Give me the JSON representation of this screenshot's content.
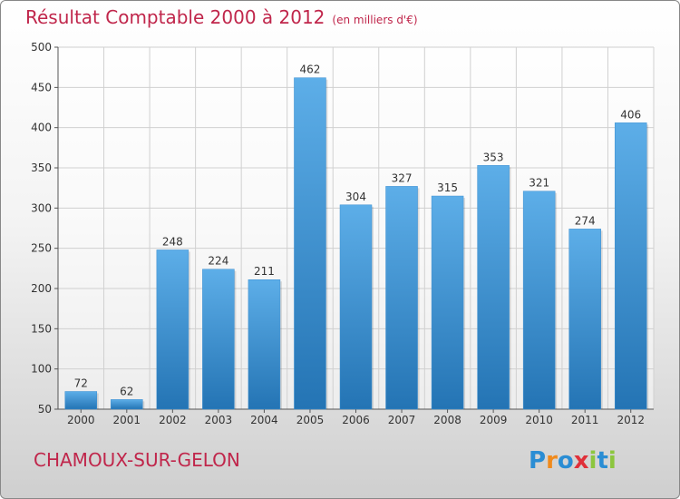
{
  "header": {
    "title": "Résultat Comptable 2000 à 2012",
    "subtitle": "(en milliers d'€)"
  },
  "footer": {
    "town": "CHAMOUX-SUR-GELON",
    "logo_text": "Proxiti",
    "logo_letters": [
      {
        "char": "P",
        "color": "#2a8dd4"
      },
      {
        "char": "r",
        "color": "#f08a1c"
      },
      {
        "char": "o",
        "color": "#2a8dd4"
      },
      {
        "char": "x",
        "color": "#e0303a"
      },
      {
        "char": "i",
        "color": "#8cc63e"
      },
      {
        "char": "t",
        "color": "#2a8dd4"
      },
      {
        "char": "i",
        "color": "#8cc63e"
      }
    ]
  },
  "colors": {
    "title": "#c0264b",
    "bar_light": "#5daee8",
    "bar_dark": "#2474b4",
    "grid": "#d0d0d0",
    "axis_text": "#333333"
  },
  "chart_data": {
    "type": "bar",
    "title": "Résultat Comptable 2000 à 2012",
    "subtitle": "(en milliers d'€)",
    "xlabel": "",
    "ylabel": "",
    "categories": [
      "2000",
      "2001",
      "2002",
      "2003",
      "2004",
      "2005",
      "2006",
      "2007",
      "2008",
      "2009",
      "2010",
      "2011",
      "2012"
    ],
    "values": [
      72,
      62,
      248,
      224,
      211,
      462,
      304,
      327,
      315,
      353,
      321,
      274,
      406
    ],
    "ylim": [
      50,
      500
    ],
    "yticks": [
      50,
      100,
      150,
      200,
      250,
      300,
      350,
      400,
      450,
      500
    ],
    "grid": true,
    "legend": "none"
  }
}
